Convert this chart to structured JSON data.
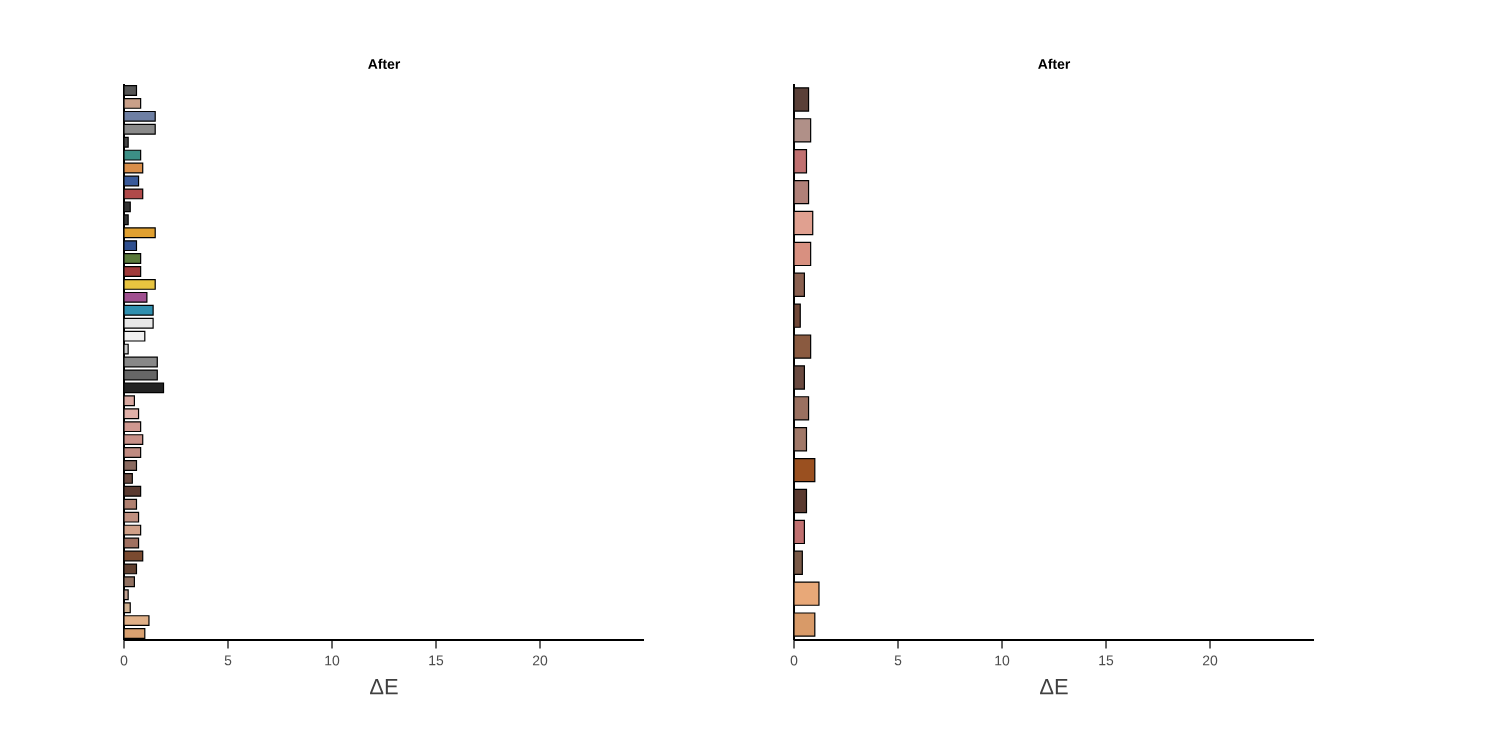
{
  "chart_data": [
    {
      "type": "bar",
      "orientation": "horizontal",
      "title": "After",
      "xlabel": "ΔE",
      "xlim": [
        0,
        25
      ],
      "xticks": [
        0,
        5,
        10,
        15,
        20
      ],
      "categories": [
        null,
        null,
        null,
        null,
        null,
        null,
        null,
        null,
        null,
        null,
        null,
        null,
        null,
        null,
        null,
        null,
        null,
        null,
        null,
        null,
        null,
        null,
        null,
        null,
        null,
        null,
        null,
        null,
        null,
        null,
        null,
        null,
        null,
        null,
        null,
        null,
        null,
        null,
        null,
        null,
        null,
        null,
        null
      ],
      "values": [
        0.6,
        0.8,
        1.5,
        1.5,
        0.2,
        0.8,
        0.9,
        0.7,
        0.9,
        0.3,
        0.2,
        1.5,
        0.6,
        0.8,
        0.8,
        1.5,
        1.1,
        1.4,
        1.4,
        1.0,
        0.2,
        1.6,
        1.6,
        1.9,
        0.5,
        0.7,
        0.8,
        0.9,
        0.8,
        0.6,
        0.4,
        0.8,
        0.6,
        0.7,
        0.8,
        0.7,
        0.9,
        0.6,
        0.5,
        0.2,
        0.3,
        1.2,
        1.0
      ],
      "colors": [
        "#555555",
        "#c9a089",
        "#6e7fa3",
        "#8a8a8a",
        "#444444",
        "#3c8f86",
        "#d98e4a",
        "#3a5a9a",
        "#b04a4a",
        "#333333",
        "#333333",
        "#e0a030",
        "#2f4f8f",
        "#5a7a3a",
        "#a03a3a",
        "#e8c440",
        "#a05090",
        "#2f8faf",
        "#e8e8e8",
        "#f0f0f0",
        "#cccccc",
        "#888888",
        "#666666",
        "#222222",
        "#d8a8a0",
        "#e0b0a8",
        "#d09890",
        "#c89088",
        "#c08a80",
        "#8a6a60",
        "#6a4a40",
        "#5a3a30",
        "#b08070",
        "#c09080",
        "#d0a088",
        "#a07060",
        "#7a4a30",
        "#604030",
        "#907060",
        "#c0a090",
        "#d0b090",
        "#e0b088",
        "#d8a070"
      ]
    },
    {
      "type": "bar",
      "orientation": "horizontal",
      "title": "After",
      "xlabel": "ΔE",
      "xlim": [
        0,
        25
      ],
      "xticks": [
        0,
        5,
        10,
        15,
        20
      ],
      "categories": [
        null,
        null,
        null,
        null,
        null,
        null,
        null,
        null,
        null,
        null,
        null,
        null,
        null,
        null,
        null,
        null,
        null,
        null
      ],
      "values": [
        0.7,
        0.8,
        0.6,
        0.7,
        0.9,
        0.8,
        0.5,
        0.3,
        0.8,
        0.5,
        0.7,
        0.6,
        1.0,
        0.6,
        0.5,
        0.4,
        1.2,
        1.0
      ],
      "colors": [
        "#5a4038",
        "#b09088",
        "#c07070",
        "#b08078",
        "#e0a090",
        "#d89080",
        "#8a6050",
        "#704838",
        "#8a5a40",
        "#6a4a40",
        "#9a7060",
        "#a07868",
        "#9a5020",
        "#5a3a30",
        "#c07070",
        "#7a5a48",
        "#e8a878",
        "#d89a68"
      ]
    }
  ]
}
